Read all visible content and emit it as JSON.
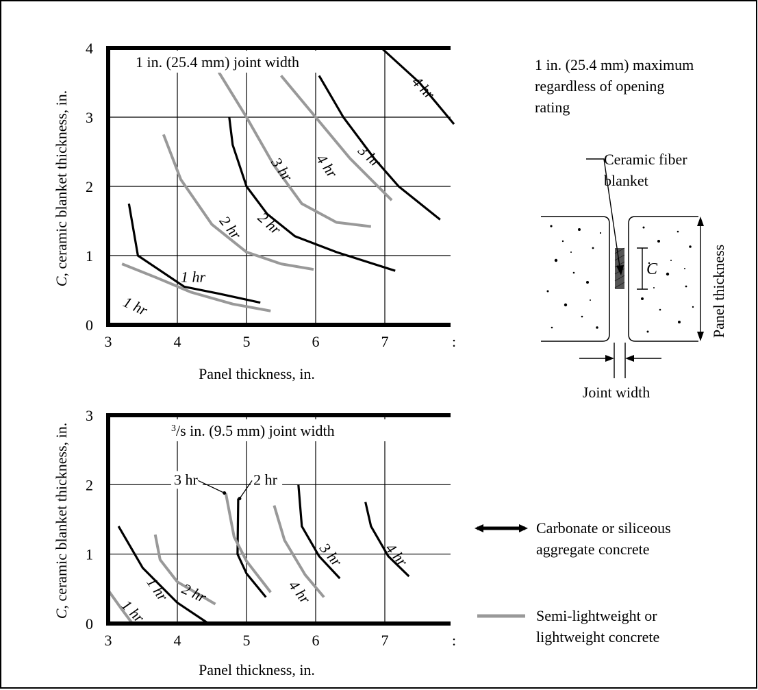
{
  "note": {
    "lines": [
      "1 in. (25.4 mm) maximum",
      "regardless of opening",
      "rating"
    ]
  },
  "detail": {
    "fiber_label_lines": [
      "Ceramic fiber",
      "blanket"
    ],
    "c_label": "C",
    "panel_thickness_label": "Panel thickness",
    "joint_width_label": "Joint width"
  },
  "legend": {
    "items": [
      {
        "lines": [
          "Carbonate or siliceous",
          "aggregate concrete"
        ],
        "color": "#000000"
      },
      {
        "lines": [
          "Semi-lightweight or",
          "lightweight concrete"
        ],
        "color": "#999999"
      }
    ]
  },
  "colors": {
    "carbonate": "#000000",
    "lightweight": "#999999",
    "frame": "#000000"
  },
  "chart_data": [
    {
      "type": "line",
      "title": "1 in. (25.4 mm) joint width",
      "xlabel": "Panel thickness, in.",
      "ylabel_italic": "C",
      "ylabel_rest": ", ceramic blanket thickness, in.",
      "xlim": [
        3,
        8
      ],
      "ylim": [
        0,
        4
      ],
      "xticks": [
        "3",
        "4",
        "5",
        "6",
        "7",
        ":"
      ],
      "yticks": [
        "0",
        "1",
        "2",
        "3",
        "4"
      ],
      "grid": true,
      "series": [
        {
          "group": "carbonate",
          "label": "1 hr",
          "points": [
            [
              3.3,
              1.75
            ],
            [
              3.43,
              1.0
            ],
            [
              4.1,
              0.55
            ],
            [
              4.6,
              0.45
            ],
            [
              5.2,
              0.32
            ]
          ]
        },
        {
          "group": "carbonate",
          "label": "2 hr",
          "points": [
            [
              4.75,
              3.0
            ],
            [
              4.8,
              2.6
            ],
            [
              5.0,
              2.0
            ],
            [
              5.3,
              1.6
            ],
            [
              5.7,
              1.28
            ],
            [
              6.3,
              1.05
            ],
            [
              7.15,
              0.78
            ]
          ]
        },
        {
          "group": "carbonate",
          "label": "3 hr",
          "points": [
            [
              6.05,
              3.6
            ],
            [
              6.4,
              3.0
            ],
            [
              6.85,
              2.4
            ],
            [
              7.2,
              2.0
            ],
            [
              7.8,
              1.52
            ]
          ]
        },
        {
          "group": "carbonate",
          "label": "4 hr",
          "points": [
            [
              6.95,
              4.0
            ],
            [
              7.5,
              3.5
            ],
            [
              8.0,
              2.9
            ]
          ]
        },
        {
          "group": "lightweight",
          "label": "1 hr",
          "points": [
            [
              3.2,
              0.88
            ],
            [
              3.7,
              0.68
            ],
            [
              4.2,
              0.47
            ],
            [
              4.8,
              0.3
            ],
            [
              5.35,
              0.2
            ]
          ]
        },
        {
          "group": "lightweight",
          "label": "2 hr",
          "points": [
            [
              3.8,
              2.75
            ],
            [
              4.05,
              2.1
            ],
            [
              4.5,
              1.45
            ],
            [
              5.0,
              1.05
            ],
            [
              5.5,
              0.88
            ],
            [
              5.97,
              0.8
            ]
          ]
        },
        {
          "group": "lightweight",
          "label": "3 hr",
          "points": [
            [
              4.6,
              3.65
            ],
            [
              5.0,
              3.0
            ],
            [
              5.4,
              2.3
            ],
            [
              5.8,
              1.75
            ],
            [
              6.3,
              1.48
            ],
            [
              6.8,
              1.42
            ]
          ]
        },
        {
          "group": "lightweight",
          "label": "4 hr",
          "points": [
            [
              5.5,
              3.6
            ],
            [
              6.0,
              3.0
            ],
            [
              6.5,
              2.4
            ],
            [
              7.1,
              1.8
            ]
          ]
        }
      ]
    },
    {
      "type": "line",
      "title": "/s in. (9.5 mm) joint width",
      "title_sup": "3",
      "xlabel": "Panel thickness, in.",
      "ylabel_italic": "C",
      "ylabel_rest": ", ceramic blanket thickness, in.",
      "xlim": [
        3,
        8
      ],
      "ylim": [
        0,
        3
      ],
      "xticks": [
        "3",
        "4",
        "5",
        "6",
        "7",
        ":"
      ],
      "yticks": [
        "0",
        "1",
        "2",
        "3"
      ],
      "grid": true,
      "series": [
        {
          "group": "carbonate",
          "label": "1 hr",
          "points": [
            [
              3.15,
              1.4
            ],
            [
              3.5,
              0.8
            ],
            [
              4.0,
              0.3
            ],
            [
              4.45,
              0.0
            ]
          ]
        },
        {
          "group": "carbonate",
          "label": "2 hr",
          "points": [
            [
              4.88,
              1.8
            ],
            [
              4.87,
              1.0
            ],
            [
              5.0,
              0.72
            ],
            [
              5.28,
              0.38
            ]
          ]
        },
        {
          "group": "carbonate",
          "label": "3 hr",
          "points": [
            [
              5.75,
              2.0
            ],
            [
              5.8,
              1.4
            ],
            [
              6.05,
              0.97
            ],
            [
              6.35,
              0.65
            ]
          ]
        },
        {
          "group": "carbonate",
          "label": "4 hr",
          "points": [
            [
              6.72,
              1.75
            ],
            [
              6.8,
              1.4
            ],
            [
              7.05,
              0.97
            ],
            [
              7.35,
              0.68
            ]
          ]
        },
        {
          "group": "lightweight",
          "label": "1 hr",
          "points": [
            [
              3.0,
              0.48
            ],
            [
              3.2,
              0.2
            ],
            [
              3.35,
              0.0
            ]
          ]
        },
        {
          "group": "lightweight",
          "label": "2 hr",
          "points": [
            [
              3.68,
              1.28
            ],
            [
              3.75,
              0.92
            ],
            [
              4.0,
              0.6
            ],
            [
              4.55,
              0.28
            ]
          ]
        },
        {
          "group": "lightweight",
          "label": "3 hr",
          "points": [
            [
              4.7,
              1.88
            ],
            [
              4.82,
              1.25
            ],
            [
              5.0,
              0.9
            ],
            [
              5.35,
              0.45
            ]
          ]
        },
        {
          "group": "lightweight",
          "label": "4 hr",
          "points": [
            [
              5.4,
              1.7
            ],
            [
              5.55,
              1.2
            ],
            [
              5.85,
              0.7
            ],
            [
              6.12,
              0.38
            ]
          ]
        }
      ]
    }
  ],
  "curve_labels": {
    "top": [
      {
        "text": "1 hr",
        "x": 4.05,
        "y": 0.62,
        "rot": 0
      },
      {
        "text": "1 hr",
        "x": 3.2,
        "y": 0.28,
        "rot": 25
      },
      {
        "text": "2 hr",
        "x": 4.6,
        "y": 1.5,
        "rot": 52
      },
      {
        "text": "2 hr",
        "x": 5.15,
        "y": 1.53,
        "rot": 42
      },
      {
        "text": "3 hr",
        "x": 5.35,
        "y": 2.35,
        "rot": 55
      },
      {
        "text": "4 hr",
        "x": 6.0,
        "y": 2.4,
        "rot": 55
      },
      {
        "text": "3 hr",
        "x": 6.6,
        "y": 2.5,
        "rot": 42
      },
      {
        "text": "4 hr",
        "x": 7.38,
        "y": 3.5,
        "rot": 45
      }
    ],
    "bottom": [
      {
        "text": "1 hr",
        "x": 3.18,
        "y": 0.25,
        "rot": 45
      },
      {
        "text": "1 hr",
        "x": 3.55,
        "y": 0.6,
        "rot": 55
      },
      {
        "text": "2 hr",
        "x": 4.05,
        "y": 0.45,
        "rot": 25
      },
      {
        "text": "4 hr",
        "x": 5.6,
        "y": 0.55,
        "rot": 52
      },
      {
        "text": "3 hr",
        "x": 6.05,
        "y": 1.08,
        "rot": 50
      },
      {
        "text": "4 hr",
        "x": 7.0,
        "y": 1.08,
        "rot": 50
      }
    ],
    "callouts": [
      {
        "text": "3 hr",
        "tx": 3.95,
        "ty": 2.0,
        "lx": [
          4.3,
          2.0,
          4.68,
          1.88
        ]
      },
      {
        "text": "2 hr",
        "tx": 5.1,
        "ty": 2.0,
        "lx": [
          5.08,
          2.0,
          4.9,
          1.8
        ]
      }
    ]
  }
}
